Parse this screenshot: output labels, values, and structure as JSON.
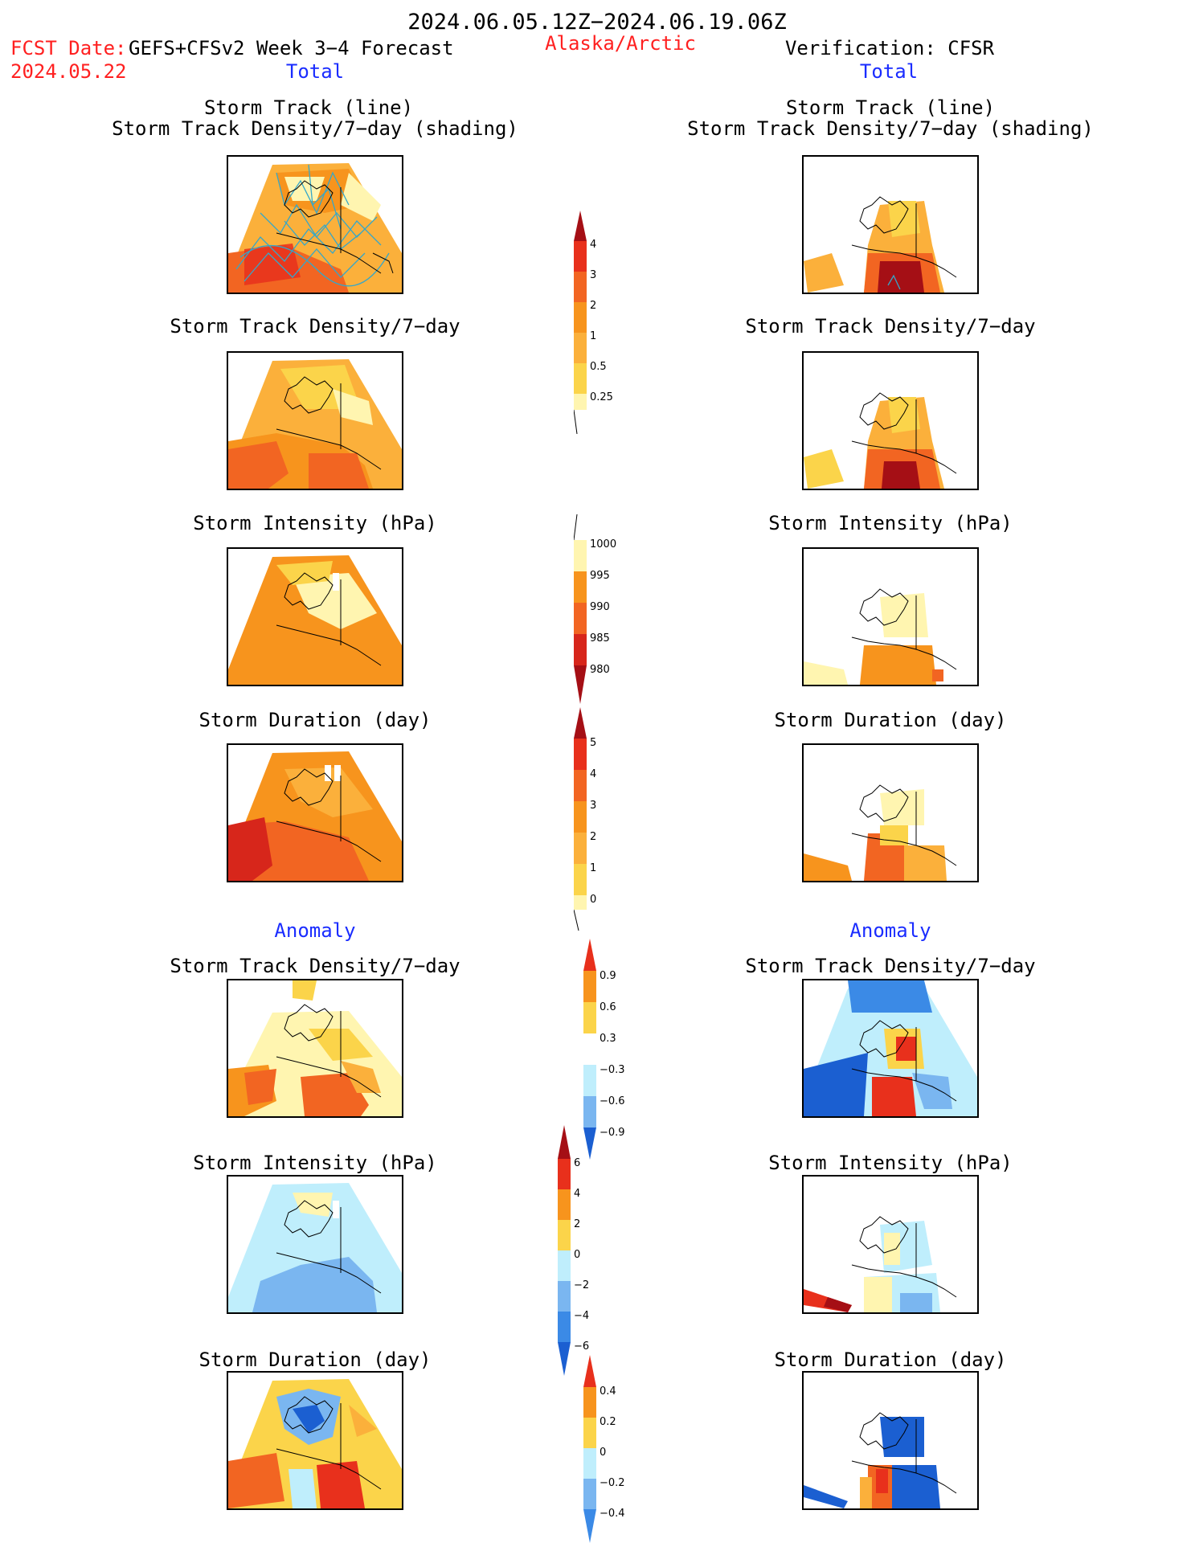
{
  "header": {
    "title": "2024.06.05.12Z−2024.06.19.06Z",
    "fcst_label": "FCST Date:",
    "fcst_model": "GEFS+CFSv2 Week 3−4 Forecast",
    "fcst_date": "2024.05.22",
    "region": "Alaska/Arctic",
    "verification": "Verification: CFSR"
  },
  "columns": {
    "left_section_total": "Total",
    "right_section_total": "Total",
    "left_section_anomaly": "Anomaly",
    "right_section_anomaly": "Anomaly"
  },
  "panels": {
    "track_line": "Storm Track (line)",
    "track_shading": "Storm Track Density/7−day (shading)",
    "density": "Storm Track Density/7−day",
    "intensity": "Storm Intensity (hPa)",
    "duration": "Storm Duration (day)"
  },
  "colorbars": {
    "density_total": [
      "4",
      "3",
      "2",
      "1",
      "0.5",
      "0.25"
    ],
    "intensity_total": [
      "1000",
      "995",
      "990",
      "985",
      "980"
    ],
    "duration_total": [
      "5",
      "4",
      "3",
      "2",
      "1",
      "0"
    ],
    "density_anom": [
      "0.9",
      "0.6",
      "0.3",
      "−0.3",
      "−0.6",
      "−0.9"
    ],
    "intensity_anom": [
      "6",
      "4",
      "2",
      "0",
      "−2",
      "−4",
      "−6"
    ],
    "duration_anom": [
      "0.4",
      "0.2",
      "0",
      "−0.2",
      "−0.4"
    ]
  },
  "colors": {
    "pale_yellow": "#fff5b0",
    "yellow": "#fbd44a",
    "light_orange": "#fbb03b",
    "orange": "#f7941d",
    "dark_orange": "#f26522",
    "red": "#e8301c",
    "dark_red": "#a50f15",
    "light_blue": "#bfeefc",
    "mid_blue": "#7ab6f0",
    "blue": "#3b8ae6",
    "dark_blue": "#1b5fd1",
    "track_line": "#35a7c9",
    "title_red": "#ff2020",
    "title_blue": "#1a2cff"
  }
}
